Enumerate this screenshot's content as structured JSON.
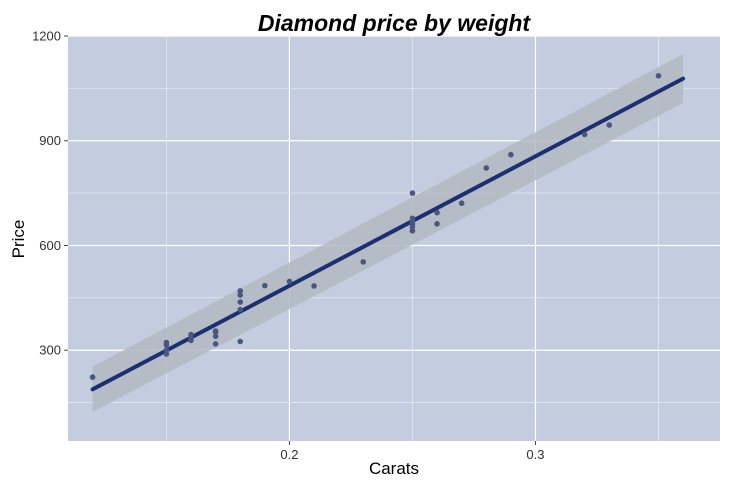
{
  "chart_data": {
    "type": "scatter",
    "title": "Diamond price by weight",
    "xlabel": "Carats",
    "ylabel": "Price",
    "xlim": [
      0.11,
      0.375
    ],
    "ylim": [
      40,
      1200
    ],
    "xticks": [
      0.2,
      0.3
    ],
    "xtick_labels": [
      "0.2",
      "0.3"
    ],
    "yticks": [
      300,
      600,
      900,
      1200
    ],
    "ytick_labels": [
      "300",
      "600",
      "900",
      "1200"
    ],
    "grid": true,
    "legend": "none",
    "points": [
      {
        "x": 0.12,
        "y": 223
      },
      {
        "x": 0.15,
        "y": 289
      },
      {
        "x": 0.15,
        "y": 300
      },
      {
        "x": 0.15,
        "y": 315
      },
      {
        "x": 0.15,
        "y": 322
      },
      {
        "x": 0.16,
        "y": 328
      },
      {
        "x": 0.16,
        "y": 335
      },
      {
        "x": 0.16,
        "y": 345
      },
      {
        "x": 0.17,
        "y": 318
      },
      {
        "x": 0.17,
        "y": 340
      },
      {
        "x": 0.17,
        "y": 352
      },
      {
        "x": 0.17,
        "y": 355
      },
      {
        "x": 0.18,
        "y": 325
      },
      {
        "x": 0.18,
        "y": 416
      },
      {
        "x": 0.18,
        "y": 438
      },
      {
        "x": 0.18,
        "y": 458
      },
      {
        "x": 0.18,
        "y": 470
      },
      {
        "x": 0.19,
        "y": 485
      },
      {
        "x": 0.2,
        "y": 497
      },
      {
        "x": 0.21,
        "y": 484
      },
      {
        "x": 0.23,
        "y": 553
      },
      {
        "x": 0.25,
        "y": 642
      },
      {
        "x": 0.25,
        "y": 653
      },
      {
        "x": 0.25,
        "y": 662
      },
      {
        "x": 0.25,
        "y": 670
      },
      {
        "x": 0.25,
        "y": 678
      },
      {
        "x": 0.25,
        "y": 750
      },
      {
        "x": 0.26,
        "y": 662
      },
      {
        "x": 0.26,
        "y": 694
      },
      {
        "x": 0.27,
        "y": 721
      },
      {
        "x": 0.28,
        "y": 822
      },
      {
        "x": 0.29,
        "y": 860
      },
      {
        "x": 0.32,
        "y": 918
      },
      {
        "x": 0.33,
        "y": 945
      },
      {
        "x": 0.35,
        "y": 1086
      }
    ],
    "fit_line": {
      "x": [
        0.12,
        0.36
      ],
      "y": [
        188,
        1078
      ]
    },
    "confidence_band": {
      "x": [
        0.12,
        0.36
      ],
      "upper": [
        253,
        1148
      ],
      "lower": [
        123,
        1008
      ]
    },
    "colors": {
      "panel_background": "#c3cddf",
      "grid": "#ffffff",
      "point": "#4a5682",
      "fit_line": "#1d2f73",
      "band": "#b3b9c2"
    }
  }
}
